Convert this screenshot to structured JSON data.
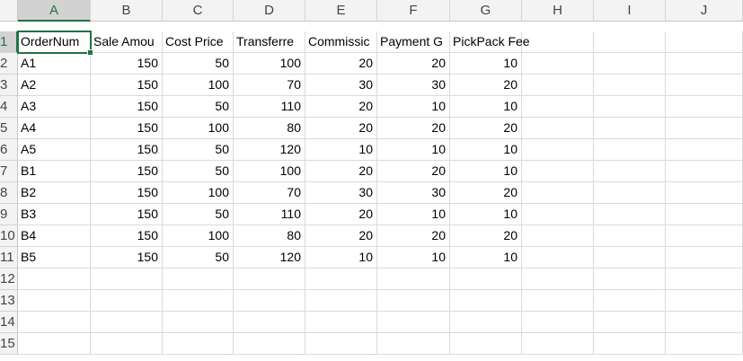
{
  "app": {
    "accent_color": "#217346",
    "active_cell": "A1"
  },
  "columns": [
    "A",
    "B",
    "C",
    "D",
    "E",
    "F",
    "G",
    "H",
    "I",
    "J"
  ],
  "rows": [
    "1",
    "2",
    "3",
    "4",
    "5",
    "6",
    "7",
    "8",
    "9",
    "10",
    "11",
    "12",
    "13",
    "14",
    "15"
  ],
  "headers": [
    "OrderNum",
    "Sale Amou",
    "Cost Price",
    "Transferre",
    "Commissic",
    "Payment G",
    "PickPack Fee"
  ],
  "table": [
    [
      "A1",
      "150",
      "50",
      "100",
      "20",
      "20",
      "10"
    ],
    [
      "A2",
      "150",
      "100",
      "70",
      "30",
      "30",
      "20"
    ],
    [
      "A3",
      "150",
      "50",
      "110",
      "20",
      "10",
      "10"
    ],
    [
      "A4",
      "150",
      "100",
      "80",
      "20",
      "20",
      "20"
    ],
    [
      "A5",
      "150",
      "50",
      "120",
      "10",
      "10",
      "10"
    ],
    [
      "B1",
      "150",
      "50",
      "100",
      "20",
      "20",
      "10"
    ],
    [
      "B2",
      "150",
      "100",
      "70",
      "30",
      "30",
      "20"
    ],
    [
      "B3",
      "150",
      "50",
      "110",
      "20",
      "10",
      "10"
    ],
    [
      "B4",
      "150",
      "100",
      "80",
      "20",
      "20",
      "20"
    ],
    [
      "B5",
      "150",
      "50",
      "120",
      "10",
      "10",
      "10"
    ]
  ]
}
